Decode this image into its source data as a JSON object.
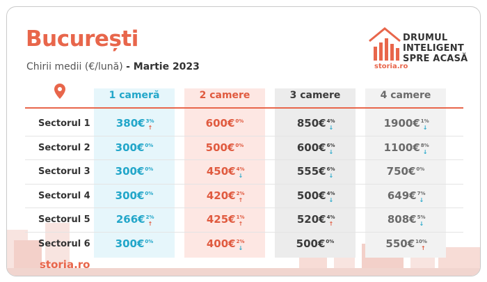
{
  "title": "București",
  "subtitle_prefix": "Chirii medii (€/lună)",
  "subtitle_suffix": "- Martie 2023",
  "brand": {
    "line1": "DRUMUL",
    "line2": "INTELIGENT",
    "line3": "SPRE ACASĂ",
    "logo": "storia.ro"
  },
  "footer_logo": "storia.ro",
  "colors": {
    "accent": "#e8664b",
    "col1": "#22a6c9",
    "col2": "#e05a3f"
  },
  "columns": [
    "1 cameră",
    "2 camere",
    "3 camere",
    "4 camere"
  ],
  "rows": [
    {
      "label": "Sectorul 1",
      "cells": [
        {
          "value": "380€",
          "pct": "3%",
          "dir": "up"
        },
        {
          "value": "600€",
          "pct": "0%",
          "dir": ""
        },
        {
          "value": "850€",
          "pct": "4%",
          "dir": "down"
        },
        {
          "value": "1900€",
          "pct": "1%",
          "dir": "down"
        }
      ]
    },
    {
      "label": "Sectorul 2",
      "cells": [
        {
          "value": "300€",
          "pct": "0%",
          "dir": ""
        },
        {
          "value": "500€",
          "pct": "0%",
          "dir": ""
        },
        {
          "value": "600€",
          "pct": "6%",
          "dir": "down"
        },
        {
          "value": "1100€",
          "pct": "8%",
          "dir": "down"
        }
      ]
    },
    {
      "label": "Sectorul 3",
      "cells": [
        {
          "value": "300€",
          "pct": "0%",
          "dir": ""
        },
        {
          "value": "450€",
          "pct": "4%",
          "dir": "down"
        },
        {
          "value": "555€",
          "pct": "6%",
          "dir": "down"
        },
        {
          "value": "750€",
          "pct": "0%",
          "dir": ""
        }
      ]
    },
    {
      "label": "Sectorul 4",
      "cells": [
        {
          "value": "300€",
          "pct": "0%",
          "dir": ""
        },
        {
          "value": "420€",
          "pct": "2%",
          "dir": "up"
        },
        {
          "value": "500€",
          "pct": "4%",
          "dir": "down"
        },
        {
          "value": "649€",
          "pct": "7%",
          "dir": "down"
        }
      ]
    },
    {
      "label": "Sectorul 5",
      "cells": [
        {
          "value": "266€",
          "pct": "2%",
          "dir": "up"
        },
        {
          "value": "425€",
          "pct": "1%",
          "dir": "up"
        },
        {
          "value": "520€",
          "pct": "4%",
          "dir": "up"
        },
        {
          "value": "808€",
          "pct": "5%",
          "dir": "down"
        }
      ]
    },
    {
      "label": "Sectorul 6",
      "cells": [
        {
          "value": "300€",
          "pct": "0%",
          "dir": ""
        },
        {
          "value": "400€",
          "pct": "2%",
          "dir": "down"
        },
        {
          "value": "500€",
          "pct": "0%",
          "dir": ""
        },
        {
          "value": "550€",
          "pct": "10%",
          "dir": "up"
        }
      ]
    }
  ]
}
